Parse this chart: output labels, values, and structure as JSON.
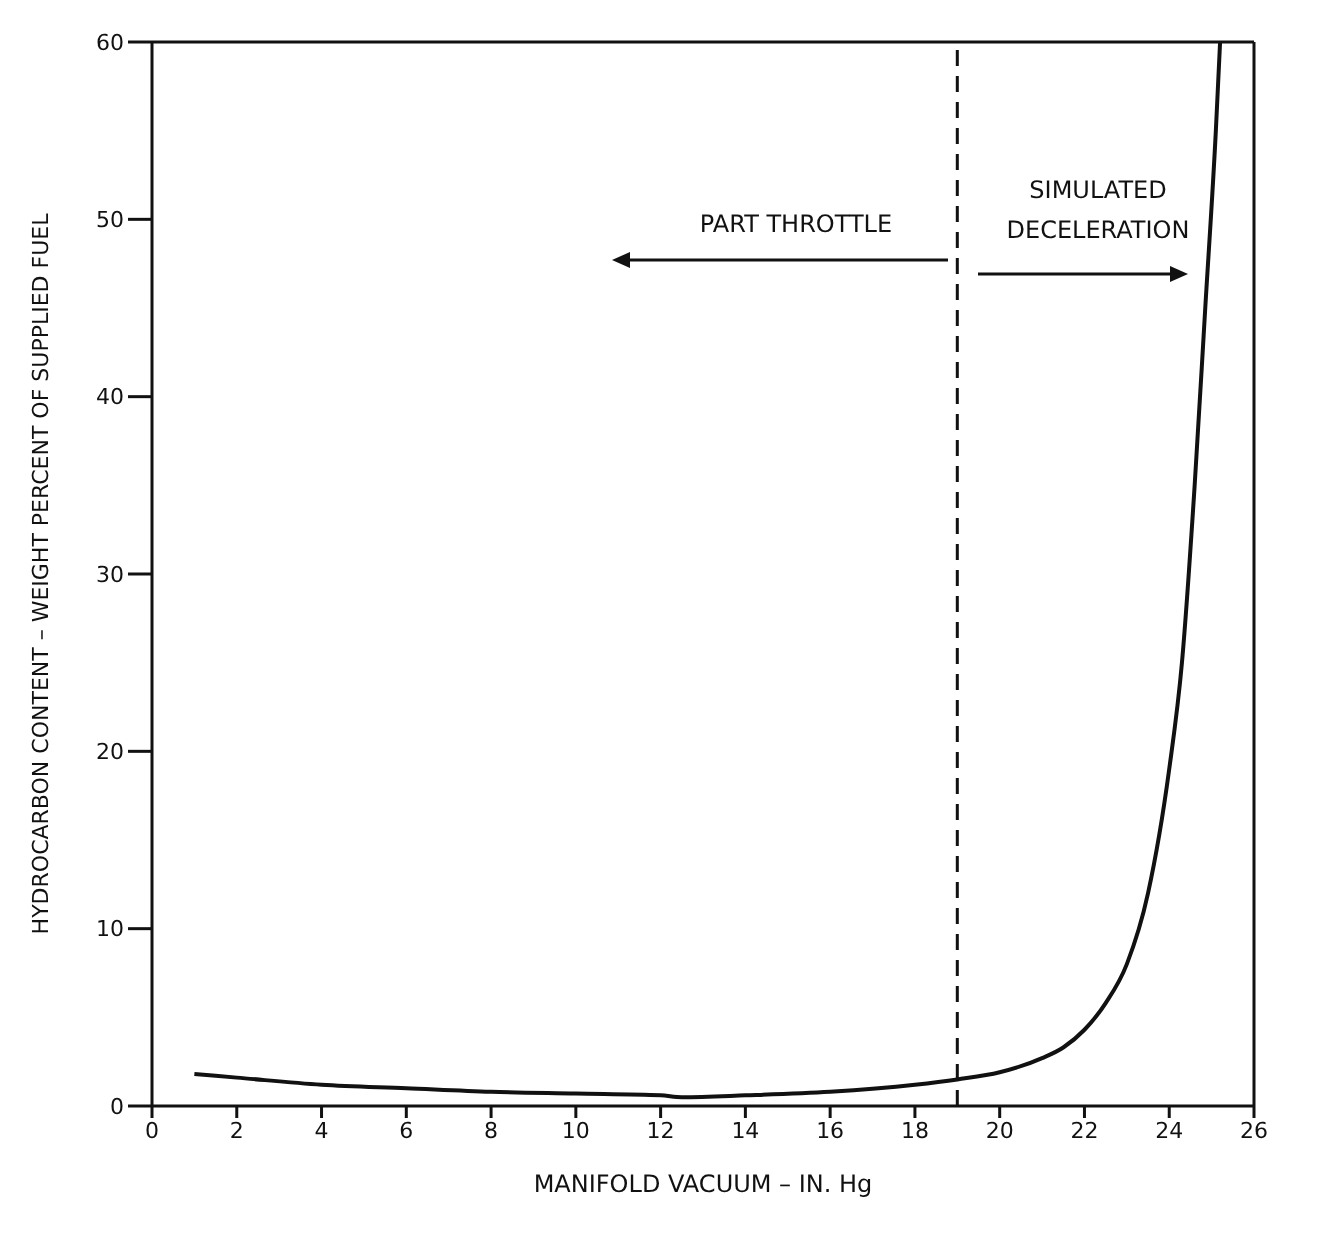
{
  "chart_data": {
    "type": "line",
    "xlabel": "MANIFOLD VACUUM – IN. Hg",
    "ylabel": "HYDROCARBON CONTENT – WEIGHT PERCENT OF SUPPLIED FUEL",
    "x": [
      1,
      2,
      4,
      6,
      8,
      10,
      12,
      12.5,
      14,
      16,
      18,
      19,
      20,
      21,
      21.5,
      22,
      22.5,
      23,
      23.5,
      24,
      24.3,
      24.6,
      24.85,
      25.1,
      25.2
    ],
    "series": [
      {
        "color": "#111111",
        "values": [
          1.8,
          1.6,
          1.2,
          1,
          0.8,
          0.7,
          0.6,
          0.5,
          0.6,
          0.8,
          1.2,
          1.5,
          1.9,
          2.7,
          3.3,
          4.3,
          5.8,
          8,
          12,
          19,
          25,
          35,
          45,
          55,
          60
        ]
      }
    ],
    "xlim": [
      0,
      26
    ],
    "xticks": [
      0,
      2,
      4,
      6,
      8,
      10,
      12,
      14,
      16,
      18,
      20,
      22,
      24,
      26
    ],
    "ylim": [
      0,
      60
    ],
    "yticks": [
      0,
      10,
      20,
      30,
      40,
      50,
      60
    ],
    "grid": false,
    "marker": "none",
    "line_style": "solid",
    "legend": false,
    "ref_lines": [
      {
        "axis": "x",
        "value": 19,
        "line_style": "dashed",
        "color": "#111111"
      }
    ],
    "annotations": [
      "PART THROTTLE",
      "SIMULATED DECELERATION"
    ]
  }
}
